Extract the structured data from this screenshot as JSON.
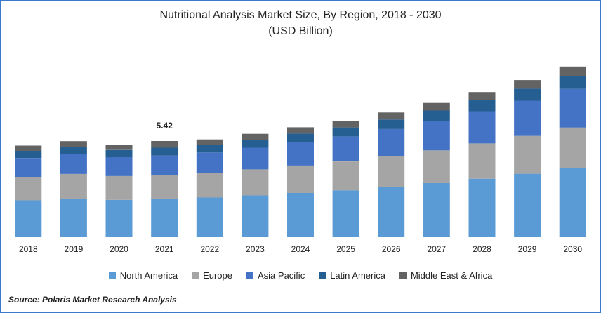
{
  "chart_data": {
    "type": "bar",
    "stacked": true,
    "title": "Nutritional Analysis Market Size, By Region, 2018 - 2030",
    "subtitle": "(USD Billion)",
    "categories": [
      "2018",
      "2019",
      "2020",
      "2021",
      "2022",
      "2023",
      "2024",
      "2025",
      "2026",
      "2027",
      "2028",
      "2029",
      "2030"
    ],
    "series": [
      {
        "name": "North America",
        "color": "#5b9bd5",
        "values": [
          2.05,
          2.15,
          2.08,
          2.12,
          2.21,
          2.33,
          2.47,
          2.62,
          2.81,
          3.03,
          3.28,
          3.56,
          3.87
        ]
      },
      {
        "name": "Europe",
        "color": "#a5a5a5",
        "values": [
          1.34,
          1.4,
          1.35,
          1.37,
          1.41,
          1.48,
          1.56,
          1.64,
          1.75,
          1.86,
          2.0,
          2.15,
          2.32
        ]
      },
      {
        "name": "Asia Pacific",
        "color": "#4472c4",
        "values": [
          1.07,
          1.12,
          1.07,
          1.1,
          1.15,
          1.23,
          1.33,
          1.42,
          1.54,
          1.68,
          1.83,
          2.0,
          2.19
        ]
      },
      {
        "name": "Latin America",
        "color": "#255e91",
        "values": [
          0.4,
          0.42,
          0.41,
          0.45,
          0.43,
          0.45,
          0.48,
          0.51,
          0.54,
          0.58,
          0.63,
          0.68,
          0.74
        ]
      },
      {
        "name": "Middle East & Africa",
        "color": "#636363",
        "values": [
          0.3,
          0.32,
          0.3,
          0.38,
          0.31,
          0.34,
          0.36,
          0.38,
          0.4,
          0.43,
          0.46,
          0.49,
          0.53
        ]
      }
    ],
    "data_labels": [
      {
        "category": "2021",
        "text": "5.42"
      }
    ],
    "ylim": [
      0,
      10
    ],
    "grid": false,
    "legend_position": "bottom"
  },
  "source": "Source: Polaris  Market Research Analysis"
}
